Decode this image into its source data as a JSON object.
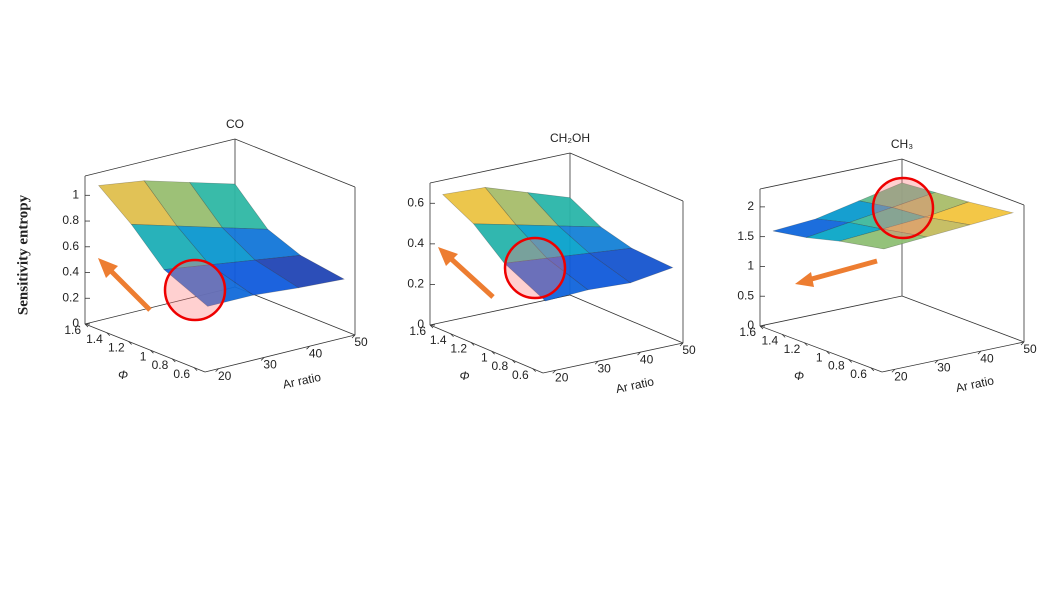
{
  "chart_data": [
    {
      "type": "surface",
      "title": "CO",
      "xlabel": "Ar ratio",
      "ylabel": "Φ",
      "zlabel": "Sensitivity entropy",
      "x": [
        20,
        30,
        40,
        50
      ],
      "y": [
        0.6,
        1.0,
        1.3,
        1.6
      ],
      "z": [
        [
          0.45,
          0.45,
          0.42,
          0.4
        ],
        [
          0.6,
          0.55,
          0.5,
          0.45
        ],
        [
          0.85,
          0.75,
          0.65,
          0.55
        ],
        [
          1.05,
          1.0,
          0.9,
          0.8
        ]
      ],
      "xlim": [
        17,
        50
      ],
      "ylim": [
        0.5,
        1.6
      ],
      "zlim": [
        0,
        1.15
      ],
      "xticks": [
        20,
        30,
        40,
        50
      ],
      "yticks": [
        0.6,
        0.8,
        1,
        1.2,
        1.4,
        1.6
      ],
      "zticks": [
        0,
        0.2,
        0.4,
        0.6,
        0.8,
        1
      ]
    },
    {
      "type": "surface",
      "title": "CH₂OH",
      "xlabel": "Ar ratio",
      "ylabel": "Φ",
      "x": [
        20,
        30,
        40,
        50
      ],
      "y": [
        0.6,
        1.0,
        1.3,
        1.6
      ],
      "z": [
        [
          0.32,
          0.33,
          0.32,
          0.35
        ],
        [
          0.42,
          0.4,
          0.38,
          0.36
        ],
        [
          0.55,
          0.5,
          0.45,
          0.4
        ],
        [
          0.63,
          0.62,
          0.55,
          0.48
        ]
      ],
      "xlim": [
        17,
        50
      ],
      "ylim": [
        0.5,
        1.6
      ],
      "zlim": [
        0,
        0.7
      ],
      "xticks": [
        20,
        30,
        40,
        50
      ],
      "yticks": [
        0.6,
        0.8,
        1,
        1.2,
        1.4,
        1.6
      ],
      "zticks": [
        0,
        0.2,
        0.4,
        0.6
      ]
    },
    {
      "type": "surface",
      "title": "CH₃",
      "xlabel": "Ar ratio",
      "ylabel": "Φ",
      "x": [
        20,
        30,
        40,
        50
      ],
      "y": [
        0.6,
        1.0,
        1.3,
        1.6
      ],
      "z": [
        [
          1.95,
          2.0,
          2.05,
          2.1
        ],
        [
          1.8,
          1.85,
          1.9,
          2.0
        ],
        [
          1.65,
          1.75,
          1.85,
          1.95
        ],
        [
          1.55,
          1.6,
          1.75,
          1.9
        ]
      ],
      "xlim": [
        17,
        50
      ],
      "ylim": [
        0.5,
        1.6
      ],
      "zlim": [
        0,
        2.3
      ],
      "xticks": [
        20,
        30,
        40,
        50
      ],
      "yticks": [
        0.6,
        0.8,
        1,
        1.2,
        1.4,
        1.6
      ],
      "zticks": [
        0,
        0.5,
        1,
        1.5,
        2
      ]
    }
  ]
}
